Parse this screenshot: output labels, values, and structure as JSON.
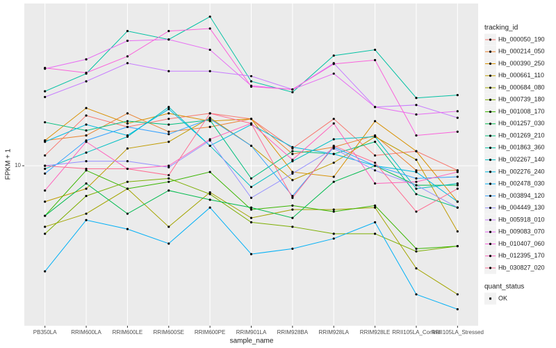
{
  "chart_data": {
    "type": "line",
    "x_label": "sample_name",
    "y_label": "FPKM + 1",
    "legend_title": "tracking_id",
    "shape_legend": {
      "title": "quant_status",
      "labels": [
        "OK"
      ]
    },
    "log_y": true,
    "grid": true,
    "legend_position": "right",
    "ylim": [
      3.5,
      29
    ],
    "yticks": [
      10
    ],
    "categories": [
      "PB350LA",
      "RRIM600LA",
      "RRIM600LE",
      "RRIM600SE",
      "RRIM600PE",
      "RRIM901LA",
      "RRIM928BA",
      "RRIM928LA",
      "RRIM928LE",
      "RRII105LA_Control",
      "RRII105LA_Stressed"
    ],
    "series": [
      {
        "name": "Hb_000050_190",
        "color": "#F8766D",
        "values": [
          10.7,
          13.9,
          12.9,
          13.6,
          14.1,
          13.6,
          11.2,
          13.6,
          10.7,
          11.0,
          9.7
        ]
      },
      {
        "name": "Hb_000214_050",
        "color": "#EA8331",
        "values": [
          11.8,
          12.2,
          14.1,
          12.5,
          12.9,
          13.6,
          10.8,
          11.3,
          12.2,
          9.7,
          9.7
        ]
      },
      {
        "name": "Hb_000390_250",
        "color": "#D89000",
        "values": [
          11.8,
          14.6,
          13.2,
          14.1,
          13.4,
          13.6,
          9.6,
          9.3,
          13.4,
          11.0,
          7.9
        ]
      },
      {
        "name": "Hb_000661_110",
        "color": "#C09B00",
        "values": [
          7.9,
          8.6,
          11.2,
          11.7,
          13.7,
          11.4,
          9.1,
          10.2,
          12.1,
          10.4,
          6.5
        ]
      },
      {
        "name": "Hb_000684_080",
        "color": "#A3A500",
        "values": [
          6.7,
          7.3,
          8.6,
          6.7,
          8.4,
          7.1,
          7.5,
          7.5,
          7.6,
          5.1,
          4.3
        ]
      },
      {
        "name": "Hb_000739_180",
        "color": "#7CAE00",
        "values": [
          6.4,
          8.2,
          9.0,
          9.2,
          8.3,
          6.9,
          6.7,
          6.4,
          6.4,
          5.7,
          5.9
        ]
      },
      {
        "name": "Hb_001008_170",
        "color": "#39B600",
        "values": [
          7.2,
          9.7,
          8.6,
          9.0,
          9.6,
          7.5,
          7.7,
          7.4,
          7.7,
          5.8,
          5.9
        ]
      },
      {
        "name": "Hb_001257_030",
        "color": "#00BB4E",
        "values": [
          7.2,
          8.9,
          7.3,
          8.5,
          8.0,
          7.6,
          7.1,
          9.0,
          10.0,
          8.8,
          8.8
        ]
      },
      {
        "name": "Hb_001269_210",
        "color": "#00BF7D",
        "values": [
          13.3,
          12.6,
          13.4,
          13.1,
          13.5,
          9.2,
          11.0,
          10.8,
          11.7,
          8.3,
          7.6
        ]
      },
      {
        "name": "Hb_001863_360",
        "color": "#00C1A3",
        "values": [
          16.3,
          18.3,
          24.2,
          22.9,
          26.6,
          17.4,
          16.2,
          20.6,
          21.4,
          15.6,
          15.9
        ]
      },
      {
        "name": "Hb_002267_140",
        "color": "#00BFC4",
        "values": [
          9.8,
          10.9,
          12.1,
          14.7,
          11.4,
          8.7,
          10.3,
          11.9,
          12.1,
          8.6,
          8.9
        ]
      },
      {
        "name": "Hb_002276_240",
        "color": "#00BAE0",
        "values": [
          11.7,
          13.1,
          12.2,
          14.5,
          11.4,
          13.1,
          11.3,
          10.8,
          10.0,
          9.6,
          7.9
        ]
      },
      {
        "name": "Hb_002478_030",
        "color": "#00B0F6",
        "values": [
          5.0,
          7.0,
          6.6,
          6.0,
          7.6,
          5.6,
          5.8,
          6.2,
          6.9,
          4.3,
          3.9
        ]
      },
      {
        "name": "Hb_003894_120",
        "color": "#35A2FF",
        "values": [
          9.5,
          11.8,
          12.9,
          12.3,
          13.6,
          11.4,
          8.2,
          11.3,
          10.0,
          9.2,
          9.3
        ]
      },
      {
        "name": "Hb_004449_130",
        "color": "#9590FF",
        "values": [
          10.0,
          10.3,
          10.3,
          9.9,
          11.8,
          8.1,
          9.5,
          11.2,
          9.7,
          8.8,
          7.6
        ]
      },
      {
        "name": "Hb_005918_010",
        "color": "#C77CFF",
        "values": [
          15.7,
          17.4,
          19.6,
          18.6,
          18.6,
          18.0,
          16.5,
          19.6,
          14.7,
          14.9,
          13.7
        ]
      },
      {
        "name": "Hb_009083_070",
        "color": "#E76BF3",
        "values": [
          18.9,
          20.1,
          22.7,
          22.9,
          21.4,
          16.9,
          16.5,
          18.3,
          14.7,
          14.0,
          14.3
        ]
      },
      {
        "name": "Hb_010407_060",
        "color": "#FA62DB",
        "values": [
          19.0,
          18.4,
          20.5,
          24.2,
          24.6,
          16.8,
          16.5,
          19.5,
          20.0,
          12.2,
          12.5
        ]
      },
      {
        "name": "Hb_012395_170",
        "color": "#FF62BC",
        "values": [
          8.5,
          11.7,
          9.8,
          10.0,
          11.9,
          13.2,
          10.4,
          13.2,
          8.9,
          9.0,
          9.6
        ]
      },
      {
        "name": "Hb_030827_020",
        "color": "#FF6C91",
        "values": [
          10.0,
          9.8,
          9.8,
          9.4,
          14.1,
          13.2,
          8.1,
          11.4,
          10.2,
          7.4,
          8.6
        ]
      }
    ]
  }
}
